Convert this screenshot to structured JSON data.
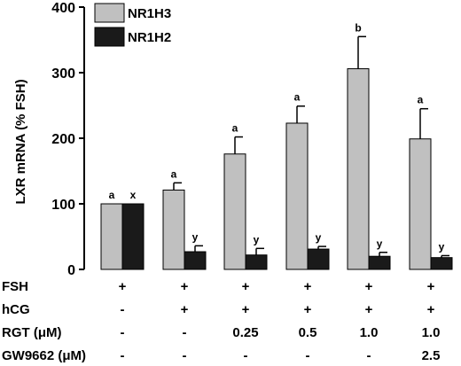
{
  "chart_data": {
    "type": "bar",
    "ylabel": "LXR mRNA (% FSH)",
    "ylim": [
      0,
      400
    ],
    "yticks": [
      0,
      100,
      200,
      300,
      400
    ],
    "grid": false,
    "legend_position": "top-left",
    "colors": {
      "NR1H3": "#c0c0c0",
      "NR1H2": "#1a1a1a"
    },
    "series": [
      {
        "name": "NR1H3",
        "values": [
          100,
          121,
          176,
          223,
          306,
          199
        ],
        "errors": [
          0,
          11,
          26,
          26,
          49,
          46
        ],
        "letters": [
          "a",
          "a",
          "a",
          "a",
          "b",
          "a"
        ]
      },
      {
        "name": "NR1H2",
        "values": [
          100,
          27,
          22,
          31,
          20,
          18
        ],
        "errors": [
          0,
          9,
          10,
          4,
          6,
          3
        ],
        "letters": [
          "x",
          "y",
          "y",
          "y",
          "y",
          "y"
        ]
      }
    ],
    "treatments": [
      {
        "label": "FSH",
        "values": [
          "+",
          "+",
          "+",
          "+",
          "+",
          "+"
        ]
      },
      {
        "label": "hCG",
        "values": [
          "-",
          "+",
          "+",
          "+",
          "+",
          "+"
        ]
      },
      {
        "label": "RGT (μM)",
        "values": [
          "-",
          "-",
          "0.25",
          "0.5",
          "1.0",
          "1.0"
        ]
      },
      {
        "label": "GW9662 (μM)",
        "values": [
          "-",
          "-",
          "-",
          "-",
          "-",
          "2.5"
        ]
      }
    ]
  }
}
